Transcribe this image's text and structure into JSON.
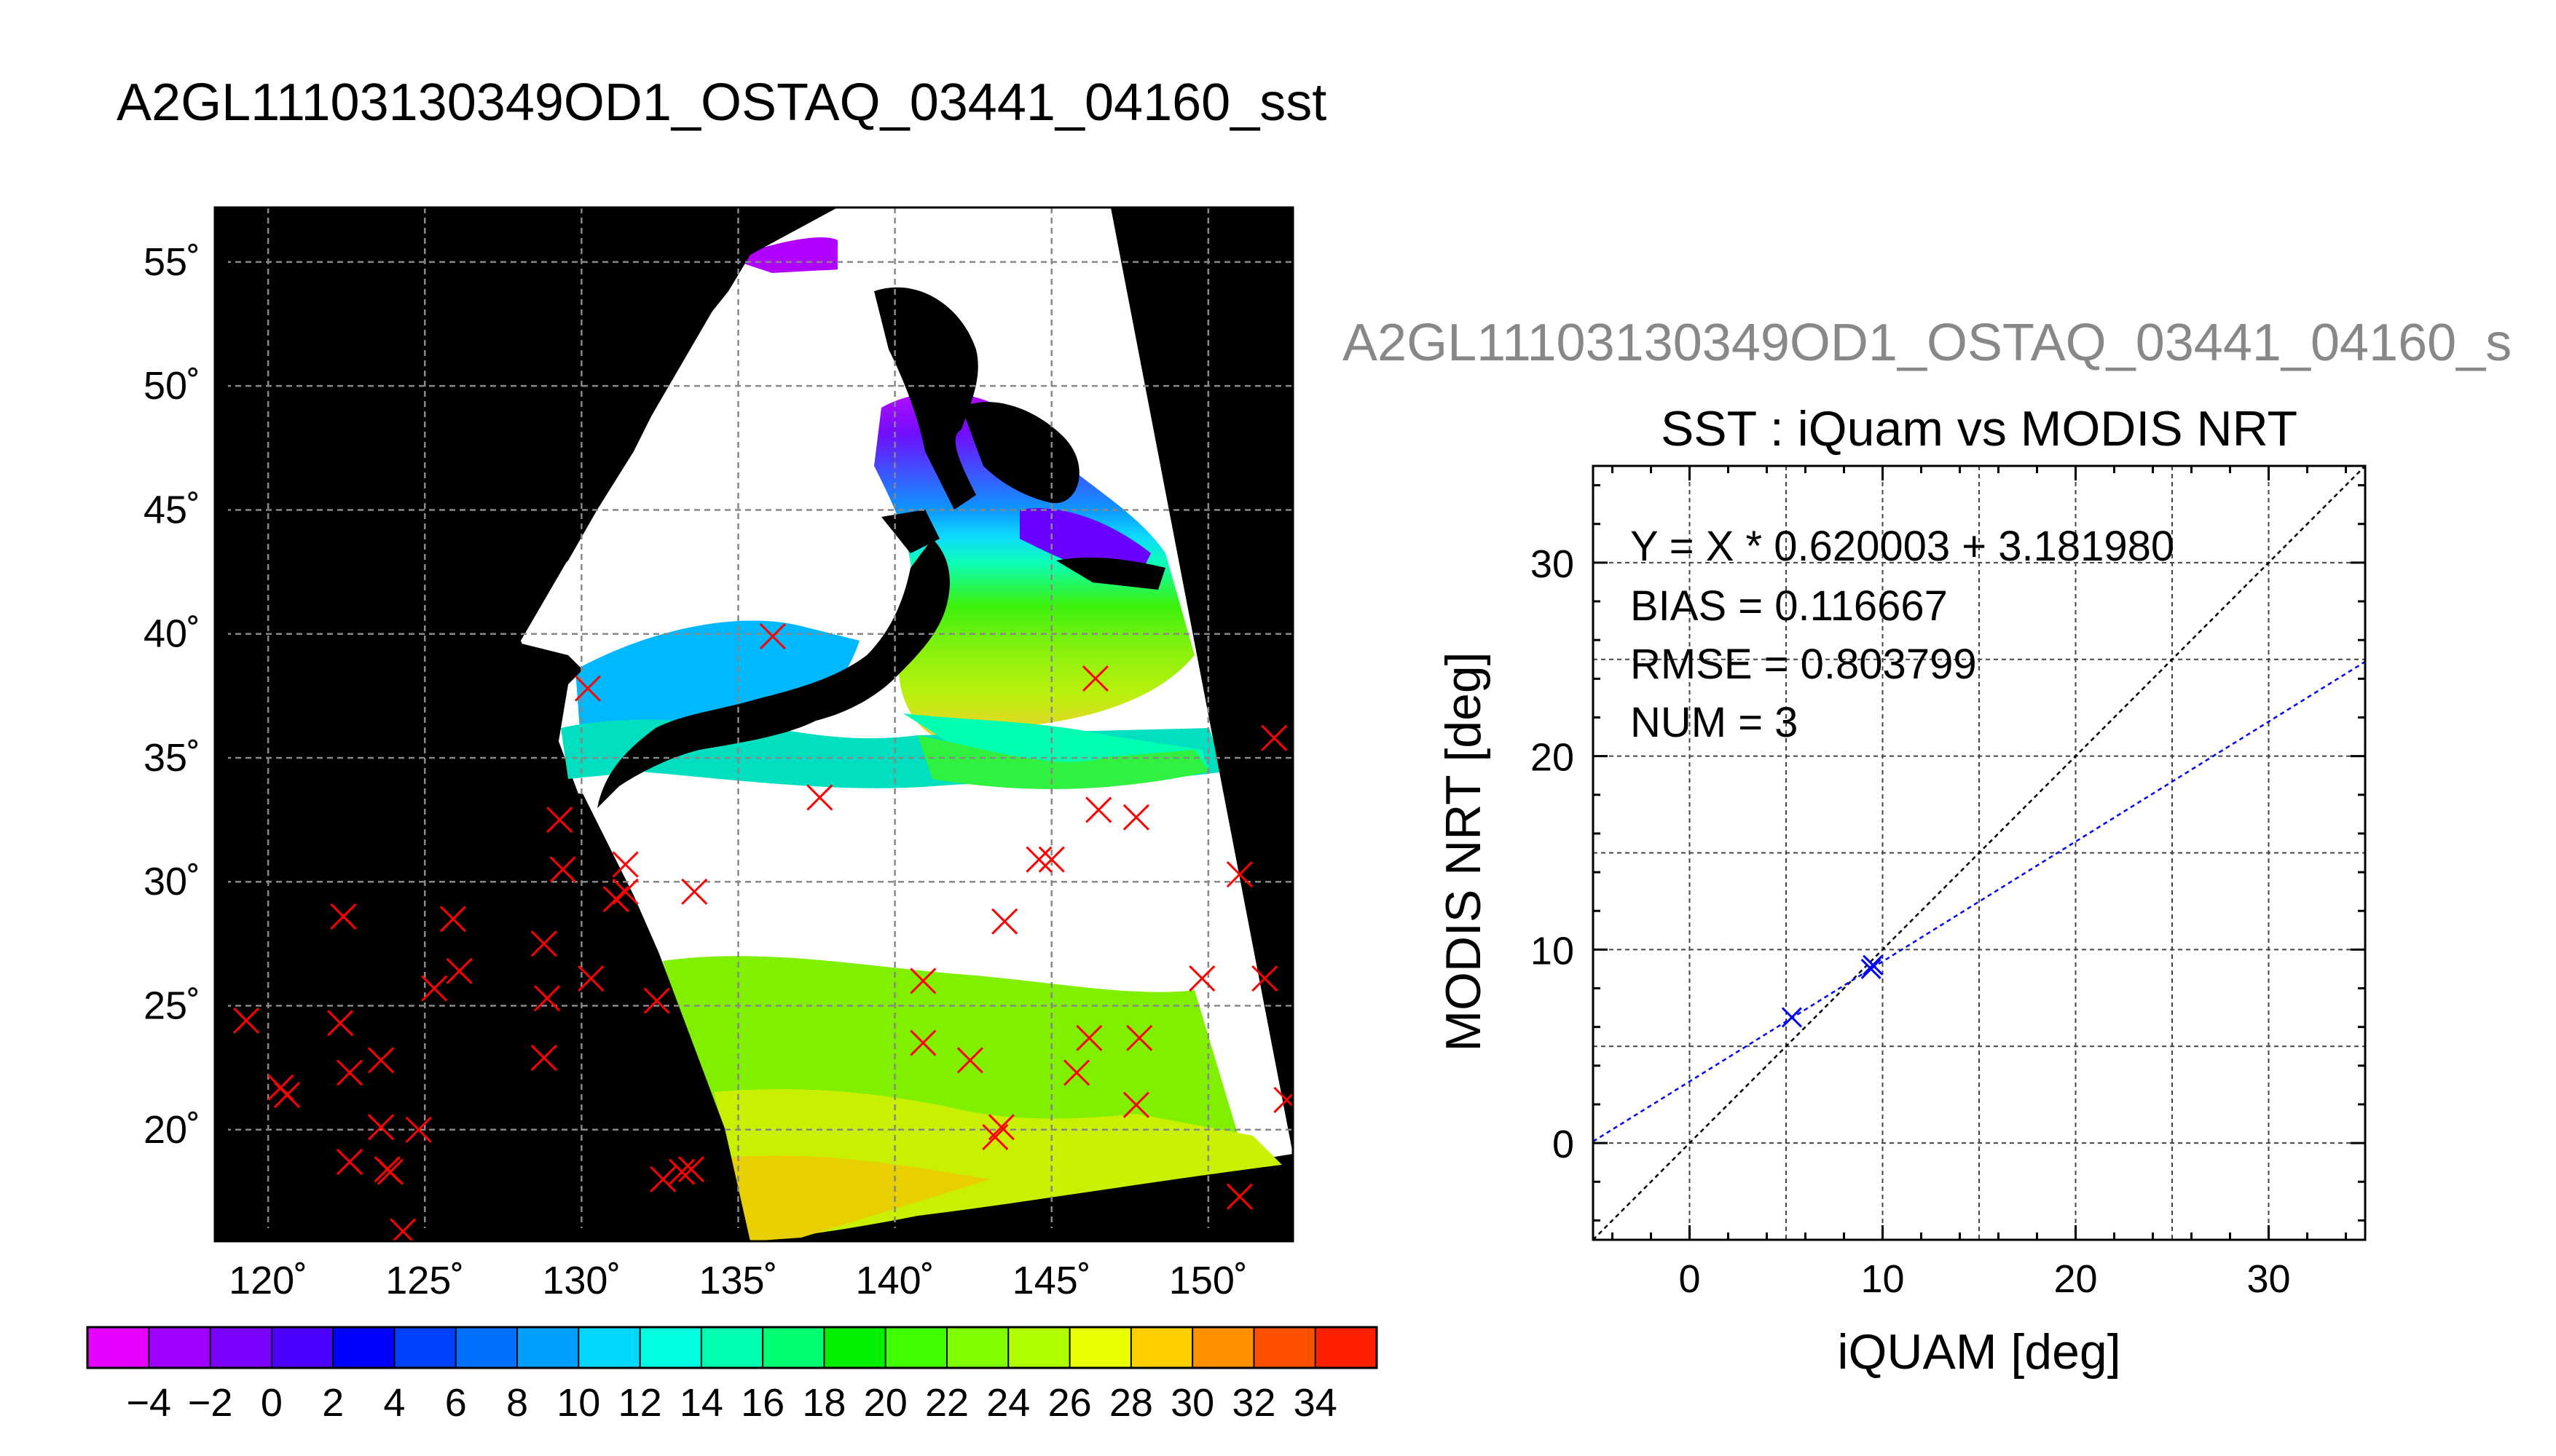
{
  "titles": {
    "main": "A2GL11103130349OD1_OSTAQ_03441_04160_sst",
    "scatter_suptitle": "A2GL11103130349OD1_OSTAQ_03441_04160_s"
  },
  "colors": {
    "background": "#000000",
    "land": "#000000",
    "cloud": "#ffffff",
    "marker_red": "#ff0000",
    "marker_blue": "#0000ff",
    "grid": "#888888"
  },
  "chart_data": [
    {
      "type": "map",
      "lon_ticks": [
        "120˚",
        "125˚",
        "130˚",
        "135˚",
        "140˚",
        "145˚",
        "150˚"
      ],
      "lat_ticks": [
        "20˚",
        "25˚",
        "30˚",
        "35˚",
        "40˚",
        "45˚",
        "50˚",
        "55˚"
      ],
      "lon_range": [
        118.3,
        152.7
      ],
      "lat_range": [
        15.5,
        57.2
      ],
      "grid": true,
      "points": [
        [
          119.3,
          24.4
        ],
        [
          120.4,
          21.7
        ],
        [
          120.6,
          21.4
        ],
        [
          122.4,
          28.6
        ],
        [
          122.3,
          24.3
        ],
        [
          122.6,
          22.3
        ],
        [
          122.6,
          18.7
        ],
        [
          123.6,
          22.8
        ],
        [
          123.6,
          20.1
        ],
        [
          123.8,
          18.4
        ],
        [
          123.9,
          18.3
        ],
        [
          124.3,
          15.9
        ],
        [
          124.8,
          20.0
        ],
        [
          125.3,
          25.7
        ],
        [
          125.9,
          28.5
        ],
        [
          126.1,
          26.4
        ],
        [
          128.8,
          27.5
        ],
        [
          128.9,
          25.3
        ],
        [
          128.8,
          22.9
        ],
        [
          129.3,
          32.5
        ],
        [
          129.4,
          30.5
        ],
        [
          130.2,
          37.8
        ],
        [
          130.3,
          26.1
        ],
        [
          131.1,
          29.3
        ],
        [
          131.4,
          30.7
        ],
        [
          131.4,
          29.6
        ],
        [
          132.4,
          25.2
        ],
        [
          132.6,
          18.0
        ],
        [
          133.2,
          18.3
        ],
        [
          133.5,
          18.4
        ],
        [
          133.6,
          29.6
        ],
        [
          136.1,
          39.9
        ],
        [
          137.6,
          33.4
        ],
        [
          140.9,
          26.0
        ],
        [
          140.9,
          23.5
        ],
        [
          142.4,
          22.8
        ],
        [
          143.2,
          19.7
        ],
        [
          143.4,
          20.1
        ],
        [
          143.5,
          28.4
        ],
        [
          144.6,
          30.9
        ],
        [
          145.0,
          30.9
        ],
        [
          145.8,
          22.3
        ],
        [
          146.2,
          23.7
        ],
        [
          146.4,
          38.2
        ],
        [
          146.5,
          32.9
        ],
        [
          147.7,
          32.6
        ],
        [
          147.7,
          21.0
        ],
        [
          147.8,
          23.7
        ],
        [
          149.8,
          26.1
        ],
        [
          151.0,
          30.3
        ],
        [
          151.0,
          17.3
        ],
        [
          151.8,
          26.1
        ],
        [
          152.1,
          35.8
        ],
        [
          152.5,
          21.2
        ]
      ]
    },
    {
      "type": "colorbar",
      "tick_labels": [
        "−4",
        "−2",
        "0",
        "2",
        "4",
        "6",
        "8",
        "10",
        "12",
        "14",
        "16",
        "18",
        "20",
        "22",
        "24",
        "26",
        "28",
        "30",
        "32",
        "34"
      ],
      "colors": [
        "#e600ff",
        "#a000ff",
        "#7a00ff",
        "#4b00ff",
        "#0000ff",
        "#0040ff",
        "#0070ff",
        "#00a0ff",
        "#00d8ff",
        "#00ffe0",
        "#00ffb0",
        "#00ff70",
        "#00f000",
        "#40ff00",
        "#80ff00",
        "#b0ff00",
        "#e8ff00",
        "#ffd000",
        "#ff9000",
        "#ff5000",
        "#ff2000"
      ]
    },
    {
      "type": "scatter",
      "title": "SST : iQuam vs MODIS NRT",
      "xlabel": "iQUAM [deg]",
      "ylabel": "MODIS NRT [deg]",
      "xlim": [
        -5,
        35
      ],
      "ylim": [
        -5,
        35
      ],
      "x_ticks": [
        0,
        10,
        20,
        30
      ],
      "y_ticks": [
        0,
        10,
        20,
        30
      ],
      "grid": true,
      "points": [
        [
          5.3,
          6.5
        ],
        [
          9.4,
          9.0
        ],
        [
          9.5,
          9.2
        ]
      ],
      "fit": {
        "slope": 0.620003,
        "intercept": 3.18198
      },
      "annotations": {
        "equation": "Y = X * 0.620003 + 3.181980",
        "bias": "BIAS = 0.116667",
        "rmse": "RMSE = 0.803799",
        "num": "NUM = 3"
      }
    }
  ]
}
